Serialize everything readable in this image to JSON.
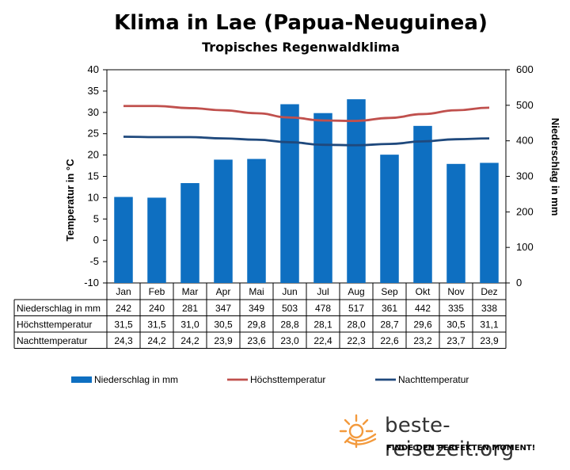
{
  "chart_data": {
    "type": "bar+line",
    "title": "Klima in Lae (Papua-Neuguinea)",
    "subtitle": "Tropisches Regenwaldklima",
    "categories": [
      "Jan",
      "Feb",
      "Mar",
      "Apr",
      "Mai",
      "Jun",
      "Jul",
      "Aug",
      "Sep",
      "Okt",
      "Nov",
      "Dez"
    ],
    "y_left": {
      "label": "Temperatur in °C",
      "range": [
        -10,
        40
      ],
      "ticks": [
        "-10",
        "-5",
        "0",
        "5",
        "10",
        "15",
        "20",
        "25",
        "30",
        "35",
        "40"
      ]
    },
    "y_right": {
      "label": "Niederschlag in mm",
      "range": [
        0,
        600
      ],
      "ticks": [
        "0",
        "100",
        "200",
        "300",
        "400",
        "500",
        "600"
      ]
    },
    "series": [
      {
        "name": "Niederschlag in mm",
        "type": "bar",
        "axis": "right",
        "color": "#0E6FC1",
        "values": [
          242,
          240,
          281,
          347,
          349,
          503,
          478,
          517,
          361,
          442,
          335,
          338
        ]
      },
      {
        "name": "Höchsttemperatur",
        "type": "line",
        "axis": "left",
        "color": "#C0504D",
        "values": [
          31.5,
          31.5,
          31.0,
          30.5,
          29.8,
          28.8,
          28.1,
          28.0,
          28.7,
          29.6,
          30.5,
          31.1
        ]
      },
      {
        "name": "Nachttemperatur",
        "type": "line",
        "axis": "left",
        "color": "#1F497D",
        "values": [
          24.3,
          24.2,
          24.2,
          23.9,
          23.6,
          23.0,
          22.4,
          22.3,
          22.6,
          23.2,
          23.7,
          23.9
        ]
      }
    ],
    "table_rows": [
      {
        "label": "Niederschlag in mm",
        "cells": [
          "242",
          "240",
          "281",
          "347",
          "349",
          "503",
          "478",
          "517",
          "361",
          "442",
          "335",
          "338"
        ]
      },
      {
        "label": "Höchsttemperatur",
        "cells": [
          "31,5",
          "31,5",
          "31,0",
          "30,5",
          "29,8",
          "28,8",
          "28,1",
          "28,0",
          "28,7",
          "29,6",
          "30,5",
          "31,1"
        ]
      },
      {
        "label": "Nachttemperatur",
        "cells": [
          "24,3",
          "24,2",
          "24,2",
          "23,9",
          "23,6",
          "23,0",
          "22,4",
          "22,3",
          "22,6",
          "23,2",
          "23,7",
          "23,9"
        ]
      }
    ],
    "legend_position": "bottom",
    "grid": false
  },
  "brand": {
    "url": "beste-reisezeit.org",
    "tagline": "FINDE DEN PERFEKTEN MOMENT!",
    "logo_icon": "sun-icon",
    "logo_color": "#F39A3D"
  }
}
